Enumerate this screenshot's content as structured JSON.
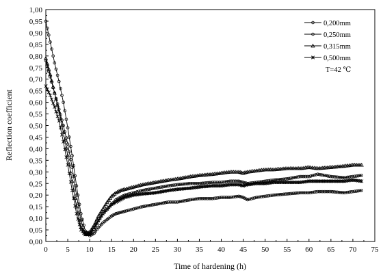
{
  "chart_data": {
    "type": "line",
    "title": "",
    "xlabel": "Time of hardening (h)",
    "ylabel": "Reflection coefficient",
    "xlim": [
      0,
      75
    ],
    "ylim": [
      0,
      1.0
    ],
    "x_ticks": [
      "0",
      "5",
      "10",
      "15",
      "20",
      "25",
      "30",
      "35",
      "40",
      "45",
      "50",
      "55",
      "60",
      "65",
      "70",
      "75"
    ],
    "y_ticks": [
      "0,00",
      "0,05",
      "0,10",
      "0,15",
      "0,20",
      "0,25",
      "0,30",
      "0,35",
      "0,40",
      "0,45",
      "0,50",
      "0,55",
      "0,60",
      "0,65",
      "0,70",
      "0,75",
      "0,80",
      "0,85",
      "0,90",
      "0,95",
      "1,00"
    ],
    "grid": false,
    "legend_position": "top-right",
    "annotation": "T=42  ℃",
    "series": [
      {
        "name": "0,200mm",
        "marker": "circle",
        "x": [
          0,
          1,
          2,
          3,
          4,
          5,
          6,
          7,
          8,
          9,
          10,
          11,
          12,
          13,
          14,
          15,
          16,
          17,
          18,
          20,
          22,
          25,
          28,
          30,
          33,
          35,
          38,
          40,
          42,
          44,
          45,
          46,
          48,
          50,
          52,
          55,
          58,
          60,
          62,
          65,
          68,
          70,
          72
        ],
        "y": [
          0.95,
          0.86,
          0.77,
          0.69,
          0.6,
          0.49,
          0.37,
          0.24,
          0.12,
          0.045,
          0.025,
          0.035,
          0.06,
          0.08,
          0.095,
          0.11,
          0.12,
          0.125,
          0.13,
          0.14,
          0.15,
          0.16,
          0.17,
          0.17,
          0.18,
          0.185,
          0.185,
          0.19,
          0.19,
          0.195,
          0.19,
          0.18,
          0.19,
          0.195,
          0.2,
          0.205,
          0.21,
          0.21,
          0.215,
          0.215,
          0.21,
          0.215,
          0.22
        ]
      },
      {
        "name": "0,250mm",
        "marker": "circle",
        "x": [
          0,
          1,
          2,
          3,
          4,
          5,
          6,
          7,
          8,
          9,
          10,
          11,
          12,
          13,
          14,
          15,
          16,
          17,
          18,
          20,
          22,
          25,
          28,
          30,
          33,
          35,
          38,
          40,
          42,
          44,
          45,
          46,
          48,
          50,
          52,
          55,
          58,
          60,
          62,
          65,
          68,
          70,
          72
        ],
        "y": [
          0.78,
          0.71,
          0.64,
          0.57,
          0.5,
          0.42,
          0.32,
          0.2,
          0.09,
          0.03,
          0.03,
          0.05,
          0.09,
          0.12,
          0.14,
          0.16,
          0.18,
          0.19,
          0.2,
          0.21,
          0.22,
          0.23,
          0.24,
          0.245,
          0.25,
          0.25,
          0.255,
          0.255,
          0.26,
          0.26,
          0.255,
          0.25,
          0.255,
          0.26,
          0.265,
          0.27,
          0.28,
          0.28,
          0.29,
          0.28,
          0.275,
          0.28,
          0.285
        ]
      },
      {
        "name": "0,315mm",
        "marker": "triangle",
        "x": [
          0,
          1,
          2,
          3,
          4,
          5,
          6,
          7,
          8,
          9,
          10,
          11,
          12,
          13,
          14,
          15,
          16,
          17,
          18,
          20,
          22,
          25,
          28,
          30,
          33,
          35,
          38,
          40,
          42,
          44,
          45,
          46,
          48,
          50,
          52,
          55,
          58,
          60,
          62,
          65,
          68,
          70,
          72
        ],
        "y": [
          0.79,
          0.72,
          0.64,
          0.56,
          0.47,
          0.37,
          0.26,
          0.15,
          0.06,
          0.035,
          0.04,
          0.07,
          0.11,
          0.14,
          0.17,
          0.195,
          0.21,
          0.22,
          0.225,
          0.235,
          0.245,
          0.255,
          0.265,
          0.27,
          0.28,
          0.285,
          0.29,
          0.295,
          0.3,
          0.3,
          0.295,
          0.3,
          0.305,
          0.31,
          0.31,
          0.315,
          0.315,
          0.32,
          0.315,
          0.32,
          0.325,
          0.33,
          0.33
        ]
      },
      {
        "name": "0,500mm",
        "marker": "star",
        "x": [
          0,
          1,
          2,
          3,
          4,
          5,
          6,
          7,
          8,
          9,
          10,
          11,
          12,
          13,
          14,
          15,
          16,
          17,
          18,
          20,
          22,
          25,
          28,
          30,
          33,
          35,
          38,
          40,
          42,
          44,
          45,
          46,
          48,
          50,
          52,
          55,
          58,
          60,
          62,
          65,
          68,
          70,
          72
        ],
        "y": [
          0.67,
          0.63,
          0.58,
          0.52,
          0.43,
          0.33,
          0.22,
          0.12,
          0.05,
          0.03,
          0.035,
          0.06,
          0.09,
          0.12,
          0.14,
          0.16,
          0.17,
          0.18,
          0.19,
          0.2,
          0.205,
          0.21,
          0.22,
          0.225,
          0.23,
          0.235,
          0.24,
          0.24,
          0.245,
          0.245,
          0.24,
          0.245,
          0.25,
          0.25,
          0.255,
          0.255,
          0.255,
          0.26,
          0.26,
          0.26,
          0.26,
          0.265,
          0.26
        ]
      }
    ]
  }
}
